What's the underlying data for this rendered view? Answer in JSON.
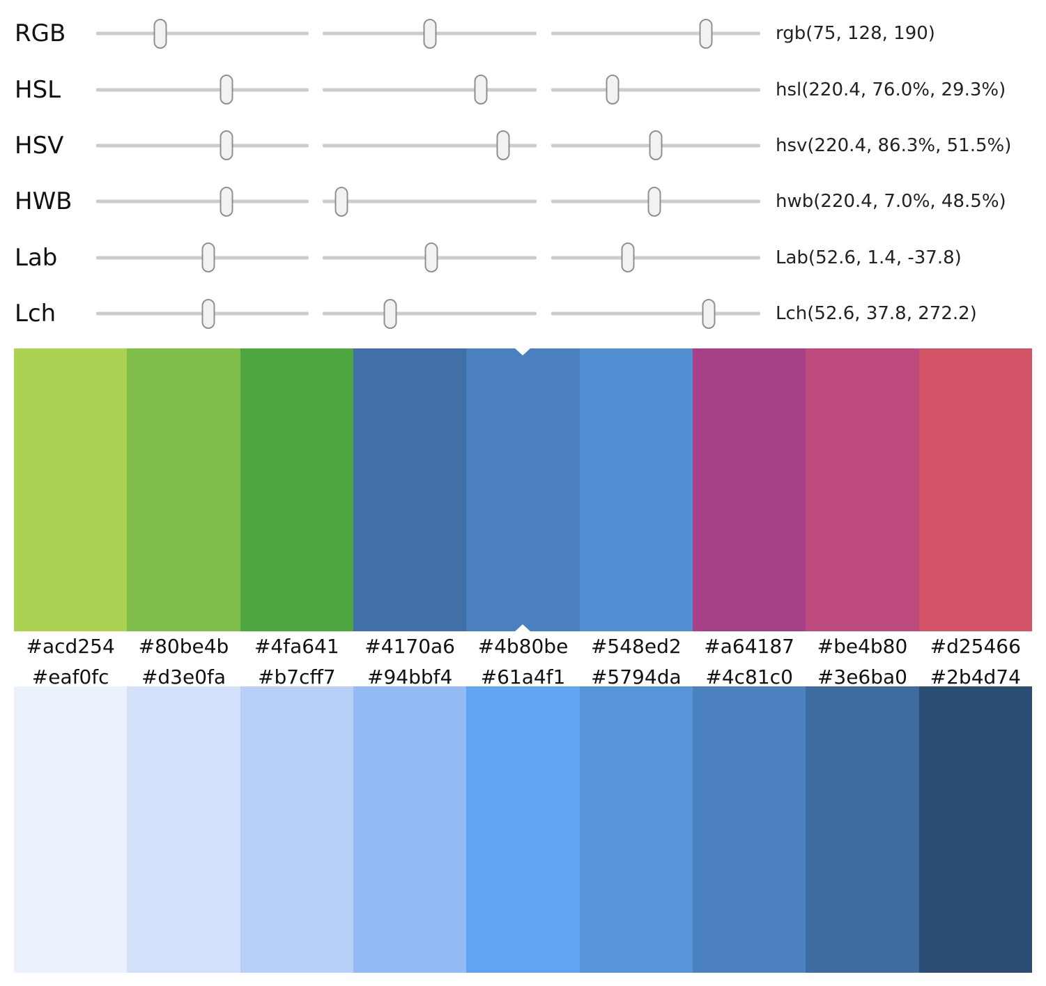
{
  "sliders": {
    "rows": [
      {
        "label": "RGB",
        "value": "rgb(75, 128, 190)",
        "thumbs": [
          30.0,
          50.2,
          74.0
        ]
      },
      {
        "label": "HSL",
        "value": "hsl(220.4, 76.0%, 29.3%)",
        "thumbs": [
          61.3,
          74.0,
          29.3
        ]
      },
      {
        "label": "HSV",
        "value": "hsv(220.4, 86.3%, 51.5%)",
        "thumbs": [
          61.3,
          84.4,
          50.0
        ]
      },
      {
        "label": "HWB",
        "value": "hwb(220.4, 7.0%, 48.5%)",
        "thumbs": [
          61.3,
          8.8,
          49.3
        ]
      },
      {
        "label": "Lab",
        "value": "Lab(52.6, 1.4, -37.8)",
        "thumbs": [
          52.8,
          50.8,
          36.7
        ]
      },
      {
        "label": "Lch",
        "value": "Lch(52.6, 37.8, 272.2)",
        "thumbs": [
          52.8,
          31.6,
          75.3
        ]
      }
    ]
  },
  "palette_top": {
    "selected_index": 4,
    "swatches": [
      "#acd254",
      "#80be4b",
      "#4fa641",
      "#4170a6",
      "#4b80be",
      "#548ed2",
      "#a64187",
      "#be4b80",
      "#d25466"
    ]
  },
  "palette_bottom": {
    "swatches": [
      "#eaf0fc",
      "#d3e0fa",
      "#b7cff7",
      "#94bbf4",
      "#61a4f1",
      "#5794da",
      "#4c81c0",
      "#3e6ba0",
      "#2b4d74"
    ]
  },
  "colors": {
    "track": "#cccccc",
    "thumb_fill": "#f2f2f2",
    "thumb_border": "#909090",
    "notch": "#ffffff",
    "text": "#111111"
  }
}
